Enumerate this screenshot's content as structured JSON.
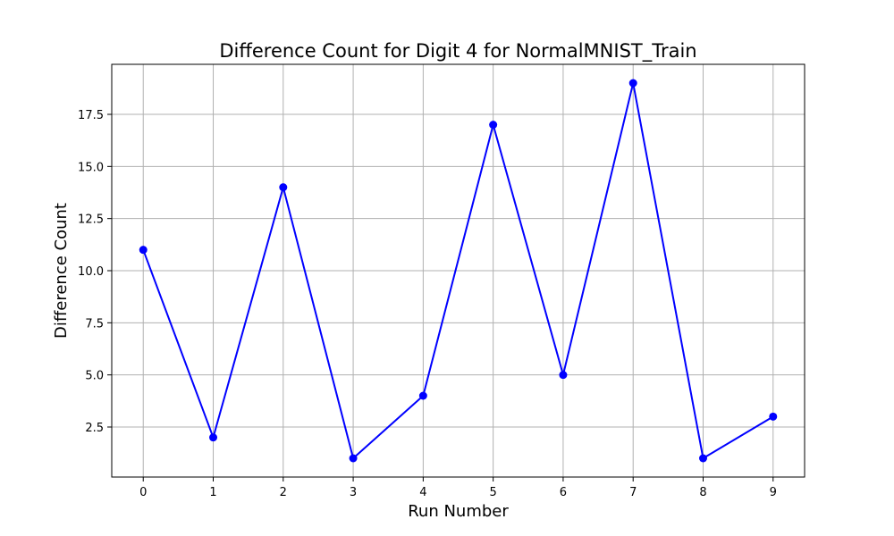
{
  "chart_data": {
    "type": "line",
    "title": "Difference Count for Digit 4 for NormalMNIST_Train",
    "xlabel": "Run Number",
    "ylabel": "Difference Count",
    "x": [
      0,
      1,
      2,
      3,
      4,
      5,
      6,
      7,
      8,
      9
    ],
    "series": [
      {
        "values": [
          11,
          2,
          14,
          1,
          4,
          17,
          5,
          19,
          1,
          3
        ],
        "color": "#0000ff",
        "marker": "circle"
      }
    ],
    "xlim": [
      -0.45,
      9.45
    ],
    "ylim": [
      0.1,
      19.9
    ],
    "xticks": [
      0,
      1,
      2,
      3,
      4,
      5,
      6,
      7,
      8,
      9
    ],
    "xtick_labels": [
      "0",
      "1",
      "2",
      "3",
      "4",
      "5",
      "6",
      "7",
      "8",
      "9"
    ],
    "yticks": [
      2.5,
      5.0,
      7.5,
      10.0,
      12.5,
      15.0,
      17.5
    ],
    "ytick_labels": [
      "2.5",
      "5.0",
      "7.5",
      "10.0",
      "12.5",
      "15.0",
      "17.5"
    ],
    "grid": true,
    "legend": false
  }
}
